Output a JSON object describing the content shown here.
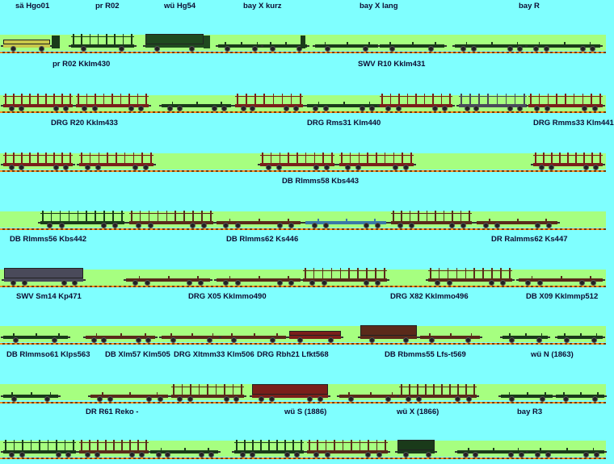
{
  "labels": [
    "sä Hgo01",
    "pr R02",
    "wü Hg54",
    "bay X kurz",
    "bay X lang",
    "bay R",
    "pr R02 Kklm430",
    "SWV R10 Kklm431",
    "DRG R20 Kklm433",
    "DRG Rms31 Klm440",
    "DRG Rmms33 Klm441",
    "DB Rlmms58 Kbs443",
    "DB Rlmms56 Kbs442",
    "DB Rlmms62 Ks446",
    "DR Ralmms62 Ks447",
    "SWV Sm14 Kp471",
    "DRG X05 Kklmmo490",
    "DRG X82 Kklmmo496",
    "DB X09 Kklmmp512",
    "DB Rlmmso61 Klps563",
    "DB Xlm57 Klm505",
    "DRG Xltmm33 Klm506",
    "DRG Rbh21 Lfkt568",
    "DB Rbmms55 Lfs-t569",
    "wü N (1863)",
    "DR R61 Reko -",
    "wü S (1886)",
    "wü X (1866)",
    "bay R3"
  ],
  "colors": {
    "sky": "#7fffff",
    "grass": "#a6ff80",
    "rail_light": "#ff8c1a",
    "rail_dark": "#7a3b00",
    "label": "#0d0d33",
    "wagon_green": "#1f4a1f",
    "wagon_darkgreen": "#1a3a1a",
    "wagon_red": "#7a1f1a",
    "wagon_brown": "#5a2a1a",
    "wagon_blue": "#3a78a8",
    "wagon_grey": "#4a4a5a",
    "wagon_yellow": "#c8c84a"
  },
  "icons": {
    "wagon": "freight-wagon-icon",
    "wheel": "wheel-icon",
    "stake": "stake-icon",
    "cab": "brakeman-cab-icon"
  }
}
